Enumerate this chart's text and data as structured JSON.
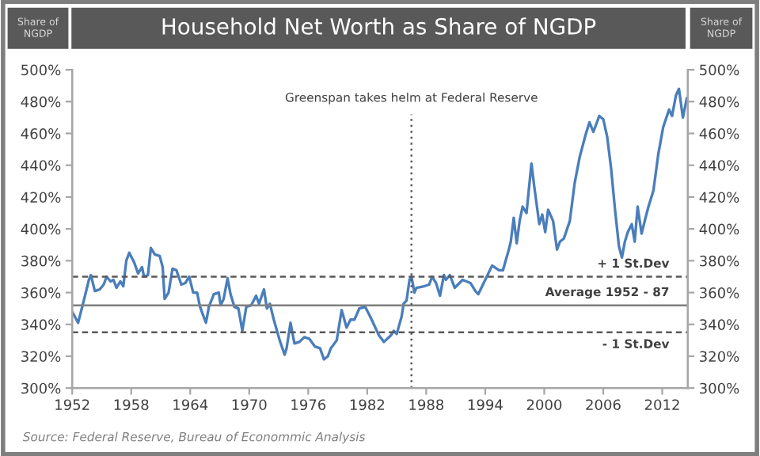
{
  "chart_data": {
    "type": "line",
    "title": "Household Net Worth as Share of NGDP",
    "ylabel": "Share of NGDP",
    "y2label": "Share of NGDP",
    "series": [
      {
        "color": "#4a7ebb",
        "x": [
          1952.0,
          1952.6,
          1953.1,
          1953.7,
          1953.9,
          1954.3,
          1954.8,
          1955.2,
          1955.5,
          1955.9,
          1956.2,
          1956.5,
          1956.9,
          1957.2,
          1957.5,
          1957.8,
          1958.3,
          1958.7,
          1959.1,
          1959.3,
          1959.7,
          1960.0,
          1960.4,
          1960.9,
          1961.2,
          1961.4,
          1961.8,
          1962.2,
          1962.6,
          1963.1,
          1963.5,
          1963.9,
          1964.3,
          1964.7,
          1965.0,
          1965.6,
          1965.9,
          1966.4,
          1966.9,
          1967.1,
          1967.4,
          1967.8,
          1968.1,
          1968.5,
          1968.9,
          1969.3,
          1969.7,
          1970.2,
          1970.7,
          1971.0,
          1971.5,
          1971.8,
          1972.1,
          1972.5,
          1973.1,
          1973.6,
          1973.8,
          1974.2,
          1974.6,
          1975.1,
          1975.6,
          1976.1,
          1976.7,
          1977.2,
          1977.6,
          1978.0,
          1978.3,
          1978.9,
          1979.4,
          1979.9,
          1980.3,
          1980.7,
          1981.2,
          1981.8,
          1982.3,
          1982.6,
          1983.2,
          1983.7,
          1984.4,
          1984.7,
          1985.0,
          1985.5,
          1985.7,
          1986.0,
          1986.3,
          1986.5,
          1986.8,
          1987.0,
          1987.8,
          1988.3,
          1988.6,
          1989.0,
          1989.4,
          1989.8,
          1990.0,
          1990.4,
          1990.9,
          1991.7,
          1992.5,
          1993.0,
          1993.3,
          1994.0,
          1994.7,
          1995.4,
          1995.8,
          1996.4,
          1996.6,
          1996.9,
          1997.2,
          1997.5,
          1997.8,
          1998.2,
          1998.7,
          1999.0,
          1999.5,
          1999.8,
          2000.1,
          2000.4,
          2000.9,
          2001.3,
          2001.6,
          2002.0,
          2002.6,
          2003.1,
          2003.6,
          2004.2,
          2004.6,
          2005.0,
          2005.6,
          2006.0,
          2006.4,
          2006.8,
          2007.2,
          2007.6,
          2007.9,
          2008.2,
          2008.5,
          2008.9,
          2009.2,
          2009.5,
          2009.9,
          2010.3,
          2010.6,
          2011.1,
          2011.6,
          2012.1,
          2012.7,
          2013.0,
          2013.4,
          2013.7,
          2014.1,
          2014.5
        ],
        "values": [
          348,
          341,
          353,
          368,
          371,
          361,
          362,
          365,
          370,
          367,
          368,
          363,
          367,
          364,
          380,
          385,
          379,
          372,
          376,
          370,
          371,
          388,
          384,
          383,
          376,
          356,
          360,
          375,
          374,
          365,
          366,
          370,
          360,
          360,
          351,
          341,
          351,
          359,
          360,
          352,
          356,
          369,
          359,
          351,
          350,
          336,
          351,
          352,
          358,
          353,
          362,
          350,
          353,
          343,
          330,
          321,
          325,
          341,
          328,
          329,
          332,
          331,
          326,
          325,
          318,
          320,
          325,
          330,
          349,
          338,
          343,
          343,
          350,
          351,
          345,
          341,
          333,
          329,
          333,
          336,
          334,
          345,
          353,
          355,
          368,
          370,
          360,
          363,
          364,
          365,
          370,
          366,
          358,
          371,
          368,
          371,
          363,
          368,
          366,
          361,
          359,
          368,
          377,
          374,
          374,
          387,
          392,
          407,
          391,
          405,
          414,
          410,
          441,
          426,
          403,
          409,
          398,
          412,
          405,
          387,
          392,
          394,
          405,
          429,
          445,
          459,
          467,
          461,
          471,
          469,
          458,
          438,
          412,
          389,
          382,
          392,
          398,
          403,
          392,
          414,
          397,
          407,
          414,
          424,
          447,
          464,
          475,
          471,
          484,
          488,
          470,
          482
        ]
      }
    ],
    "xlim": [
      1952,
      2014.6
    ],
    "xticks": [
      1952,
      1958,
      1964,
      1970,
      1976,
      1982,
      1988,
      1994,
      2000,
      2006,
      2012
    ],
    "ylim": [
      300,
      500
    ],
    "yticks": [
      {
        "value": 300,
        "label": "300%"
      },
      {
        "value": 320,
        "label": "320%"
      },
      {
        "value": 340,
        "label": "340%"
      },
      {
        "value": 360,
        "label": "360%"
      },
      {
        "value": 380,
        "label": "380%"
      },
      {
        "value": 400,
        "label": "400%"
      },
      {
        "value": 420,
        "label": "420%"
      },
      {
        "value": 440,
        "label": "440%"
      },
      {
        "value": 460,
        "label": "460%"
      },
      {
        "value": 480,
        "label": "480%"
      },
      {
        "value": 500,
        "label": "500%"
      }
    ],
    "y2lim": [
      300,
      500
    ],
    "y2ticks": [
      {
        "value": 300,
        "label": "300%"
      },
      {
        "value": 320,
        "label": "320%"
      },
      {
        "value": 340,
        "label": "340%"
      },
      {
        "value": 360,
        "label": "360%"
      },
      {
        "value": 380,
        "label": "380%"
      },
      {
        "value": 400,
        "label": "400%"
      },
      {
        "value": 420,
        "label": "420%"
      },
      {
        "value": 440,
        "label": "440%"
      },
      {
        "value": 460,
        "label": "460%"
      },
      {
        "value": 480,
        "label": "480%"
      },
      {
        "value": 500,
        "label": "500%"
      }
    ],
    "ref_lines": [
      {
        "axis": "y",
        "value": 370,
        "label": "+ 1 St.Dev",
        "color": "#595959",
        "line_style": "dashed"
      },
      {
        "axis": "y",
        "value": 352,
        "label": "Average 1952 - 87",
        "color": "#7f7f7f",
        "line_style": "solid"
      },
      {
        "axis": "y",
        "value": 335,
        "label": "- 1 St.Dev",
        "color": "#595959",
        "line_style": "dashed"
      },
      {
        "axis": "x",
        "value": 1986.5,
        "label": "Greenspan takes helm at Federal Reserve",
        "color": "#595959",
        "line_style": "dotted"
      }
    ],
    "annotations": [
      "Source: Federal Reserve, Bureau of Econommic Analysis"
    ],
    "grid": false,
    "legend": false
  }
}
